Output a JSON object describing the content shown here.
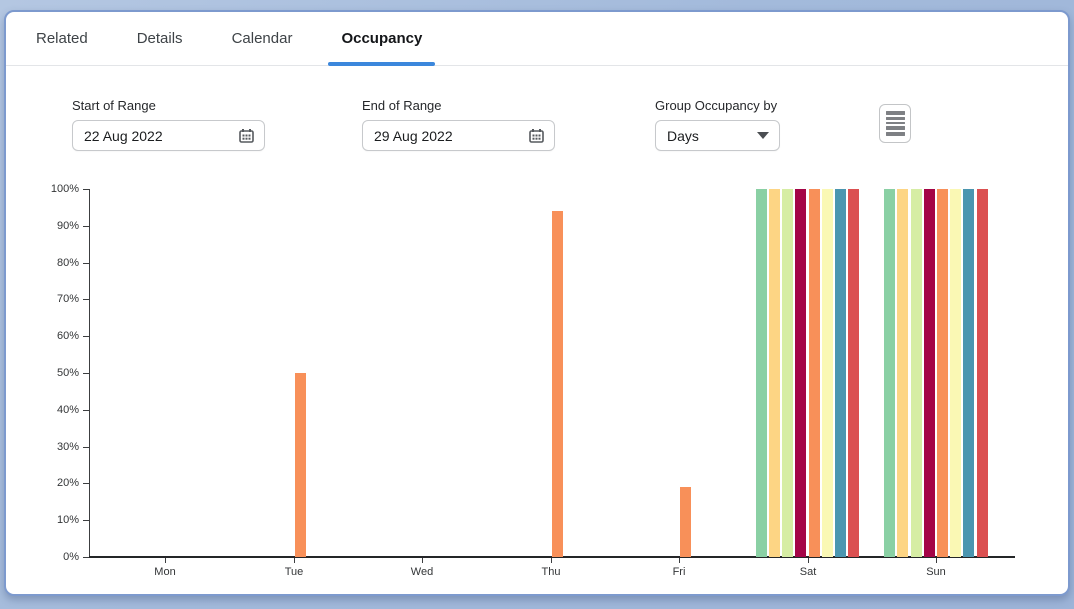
{
  "tabs": [
    {
      "label": "Related",
      "active": false
    },
    {
      "label": "Details",
      "active": false
    },
    {
      "label": "Calendar",
      "active": false
    },
    {
      "label": "Occupancy",
      "active": true
    }
  ],
  "colors": {
    "active_tab_underline": "#3b87dc",
    "single_bar_orange": "#f89059",
    "axis": "#3c3e40"
  },
  "controls": {
    "start_of_range": {
      "label": "Start of Range",
      "value": "22 Aug 2022"
    },
    "end_of_range": {
      "label": "End of Range",
      "value": "29 Aug 2022"
    },
    "group_occupancy": {
      "label": "Group Occupancy by",
      "value": "Days"
    }
  },
  "icons": {
    "calendar": "calendar-icon",
    "dropdown_caret": "caret-down-icon",
    "menu_button": "rows-menu-icon"
  },
  "chart_data": {
    "type": "bar",
    "title": "",
    "xlabel": "",
    "ylabel": "",
    "categories": [
      "Mon",
      "Tue",
      "Wed",
      "Thu",
      "Fri",
      "Sat",
      "Sun"
    ],
    "y_ticks": [
      "0%",
      "10%",
      "20%",
      "30%",
      "40%",
      "50%",
      "60%",
      "70%",
      "80%",
      "90%",
      "100%"
    ],
    "ylim": [
      0,
      100
    ],
    "grid": false,
    "legend": "none",
    "series": [
      {
        "color": "#8ad0a4",
        "values": [
          0,
          0,
          0,
          0,
          0,
          100,
          100
        ]
      },
      {
        "color": "#fdd584",
        "values": [
          0,
          0,
          0,
          0,
          0,
          100,
          100
        ]
      },
      {
        "color": "#d6eda4",
        "values": [
          0,
          0,
          0,
          0,
          0,
          100,
          100
        ]
      },
      {
        "color": "#a40547",
        "values": [
          0,
          0,
          0,
          0,
          0,
          100,
          100
        ]
      },
      {
        "color": "#f89059",
        "values": [
          0,
          50,
          0,
          94,
          19,
          100,
          100
        ]
      },
      {
        "color": "#faf8b4",
        "values": [
          0,
          0,
          0,
          0,
          0,
          100,
          100
        ]
      },
      {
        "color": "#4b96b0",
        "values": [
          0,
          0,
          0,
          0,
          0,
          100,
          100
        ]
      },
      {
        "color": "#db5051",
        "values": [
          0,
          0,
          0,
          0,
          0,
          100,
          100
        ]
      }
    ]
  }
}
